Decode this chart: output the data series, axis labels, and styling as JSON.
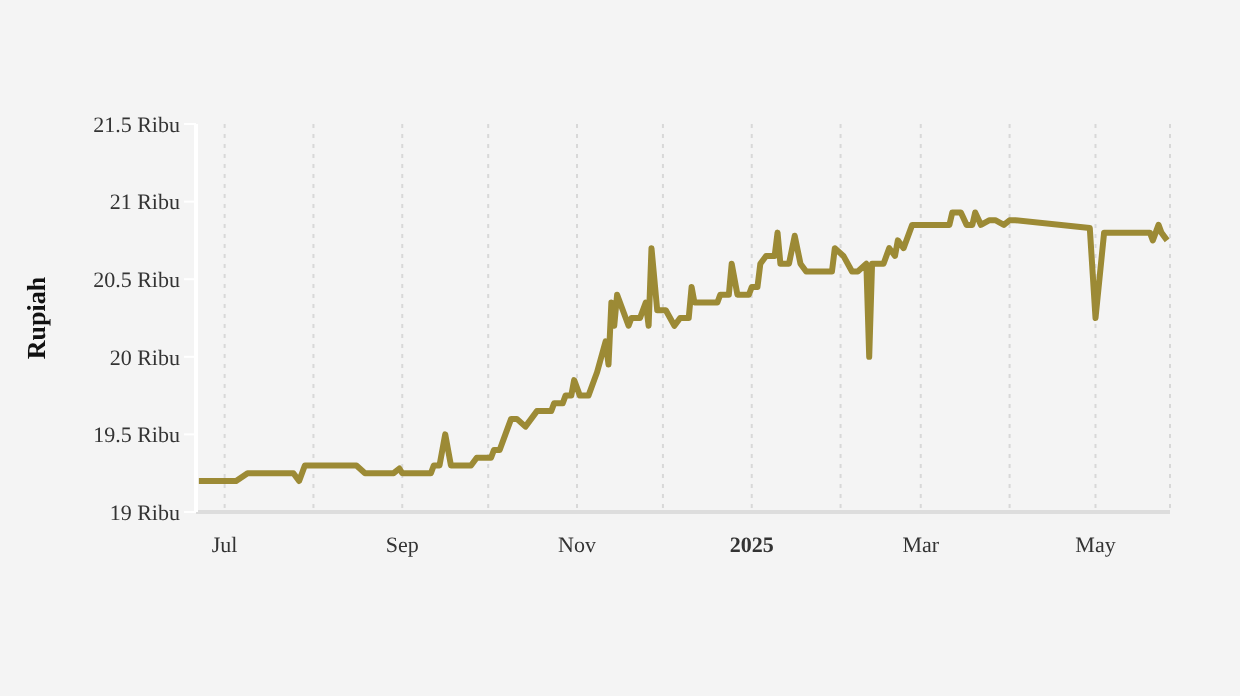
{
  "chart_data": {
    "type": "line",
    "ylabel": "Rupiah",
    "x": [
      "2024-06-22",
      "2024-07-05",
      "2024-07-09",
      "2024-07-25",
      "2024-07-27",
      "2024-07-29",
      "2024-08-16",
      "2024-08-19",
      "2024-08-29",
      "2024-08-31",
      "2024-09-01",
      "2024-09-11",
      "2024-09-12",
      "2024-09-14",
      "2024-09-16",
      "2024-09-18",
      "2024-09-25",
      "2024-09-27",
      "2024-10-02",
      "2024-10-03",
      "2024-10-05",
      "2024-10-07",
      "2024-10-09",
      "2024-10-11",
      "2024-10-14",
      "2024-10-18",
      "2024-10-23",
      "2024-10-24",
      "2024-10-27",
      "2024-10-28",
      "2024-10-30",
      "2024-10-31",
      "2024-11-02",
      "2024-11-05",
      "2024-11-07",
      "2024-11-08",
      "2024-11-11",
      "2024-11-12",
      "2024-11-13",
      "2024-11-14",
      "2024-11-15",
      "2024-11-19",
      "2024-11-20",
      "2024-11-23",
      "2024-11-25",
      "2024-11-26",
      "2024-11-27",
      "2024-11-29",
      "2024-12-02",
      "2024-12-05",
      "2024-12-07",
      "2024-12-10",
      "2024-12-11",
      "2024-12-12",
      "2024-12-20",
      "2024-12-21",
      "2024-12-24",
      "2024-12-25",
      "2024-12-27",
      "2024-12-31",
      "2025-01-01",
      "2025-01-03",
      "2025-01-04",
      "2025-01-06",
      "2025-01-09",
      "2025-01-10",
      "2025-01-11",
      "2025-01-14",
      "2025-01-16",
      "2025-01-18",
      "2025-01-20",
      "2025-01-29",
      "2025-01-30",
      "2025-02-02",
      "2025-02-05",
      "2025-02-07",
      "2025-02-10",
      "2025-02-11",
      "2025-02-12",
      "2025-02-16",
      "2025-02-18",
      "2025-02-20",
      "2025-02-21",
      "2025-02-23",
      "2025-02-26",
      "2025-03-11",
      "2025-03-12",
      "2025-03-15",
      "2025-03-17",
      "2025-03-19",
      "2025-03-20",
      "2025-03-22",
      "2025-03-25",
      "2025-03-27",
      "2025-03-30",
      "2025-04-01",
      "2025-04-03",
      "2025-04-29",
      "2025-05-01",
      "2025-05-04",
      "2025-05-20",
      "2025-05-21",
      "2025-05-23",
      "2025-05-24",
      "2025-05-26"
    ],
    "series": [
      {
        "color": "#9c8a35",
        "values": [
          19.2,
          19.2,
          19.25,
          19.25,
          19.2,
          19.3,
          19.3,
          19.25,
          19.25,
          19.28,
          19.25,
          19.25,
          19.3,
          19.3,
          19.5,
          19.3,
          19.3,
          19.35,
          19.35,
          19.4,
          19.4,
          19.5,
          19.6,
          19.6,
          19.55,
          19.65,
          19.65,
          19.7,
          19.7,
          19.75,
          19.75,
          19.85,
          19.75,
          19.75,
          19.85,
          19.9,
          20.1,
          19.95,
          20.35,
          20.2,
          20.4,
          20.2,
          20.25,
          20.25,
          20.35,
          20.2,
          20.7,
          20.3,
          20.3,
          20.2,
          20.25,
          20.25,
          20.45,
          20.35,
          20.35,
          20.4,
          20.4,
          20.6,
          20.4,
          20.4,
          20.45,
          20.45,
          20.6,
          20.65,
          20.65,
          20.8,
          20.6,
          20.6,
          20.78,
          20.6,
          20.55,
          20.55,
          20.7,
          20.65,
          20.55,
          20.55,
          20.6,
          20.0,
          20.6,
          20.6,
          20.7,
          20.65,
          20.75,
          20.7,
          20.85,
          20.85,
          20.93,
          20.93,
          20.85,
          20.85,
          20.93,
          20.85,
          20.88,
          20.88,
          20.85,
          20.88,
          20.88,
          20.83,
          20.25,
          20.8,
          20.8,
          20.75,
          20.85,
          20.8,
          20.75
        ]
      }
    ],
    "xlim": [
      "2024-06-21",
      "2025-05-27"
    ],
    "xticks": [
      {
        "value": "2024-07-01",
        "label": "Jul"
      },
      {
        "value": "2024-08-01",
        "label": null
      },
      {
        "value": "2024-09-01",
        "label": "Sep"
      },
      {
        "value": "2024-10-01",
        "label": null
      },
      {
        "value": "2024-11-01",
        "label": "Nov"
      },
      {
        "value": "2024-12-01",
        "label": null
      },
      {
        "value": "2025-01-01",
        "label": "2025"
      },
      {
        "value": "2025-02-01",
        "label": null
      },
      {
        "value": "2025-03-01",
        "label": "Mar"
      },
      {
        "value": "2025-04-01",
        "label": null
      },
      {
        "value": "2025-05-01",
        "label": "May"
      }
    ],
    "ylim": [
      19,
      21.5
    ],
    "yticks": [
      {
        "value": 19,
        "label": "19 Ribu"
      },
      {
        "value": 19.5,
        "label": "19.5 Ribu"
      },
      {
        "value": 20,
        "label": "20 Ribu"
      },
      {
        "value": 20.5,
        "label": "20.5 Ribu"
      },
      {
        "value": 21,
        "label": "21 Ribu"
      },
      {
        "value": 21.5,
        "label": "21.5 Ribu"
      }
    ],
    "grid": "x",
    "legend": false,
    "marker": "none",
    "line_style": "solid"
  }
}
